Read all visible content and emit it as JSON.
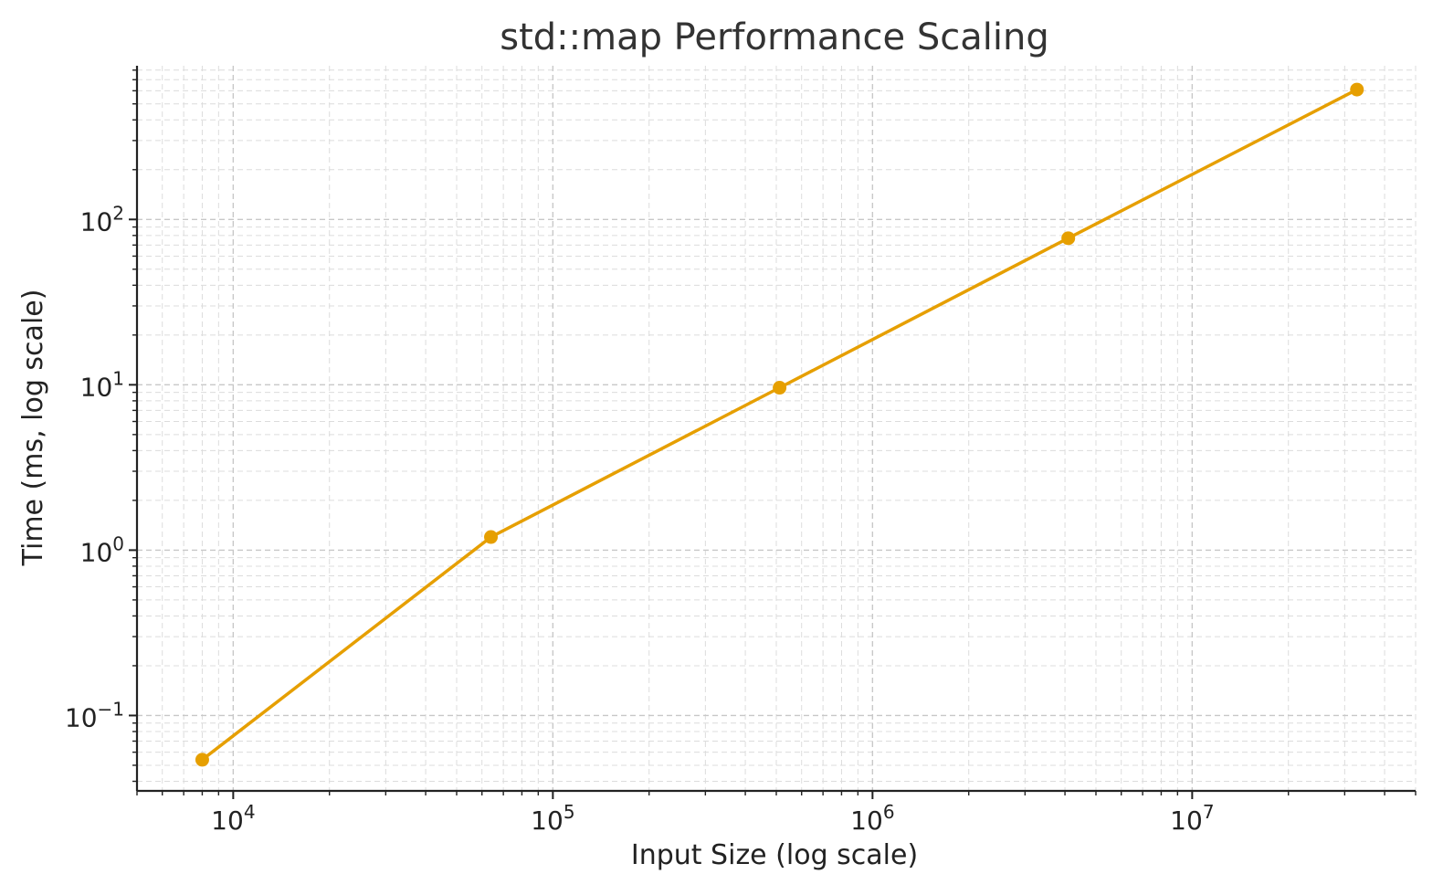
{
  "chart_data": {
    "type": "line",
    "title": "std::map Performance Scaling",
    "xlabel": "Input Size (log scale)",
    "ylabel": "Time (ms, log scale)",
    "xscale": "log",
    "yscale": "log",
    "xlim": [
      5000,
      50000000
    ],
    "ylim": [
      0.035,
      850
    ],
    "grid": true,
    "grid_style": "dashed, major and minor",
    "x_ticks": [
      {
        "value": 10000,
        "base": "10",
        "exp": "4"
      },
      {
        "value": 100000,
        "base": "10",
        "exp": "5"
      },
      {
        "value": 1000000,
        "base": "10",
        "exp": "6"
      },
      {
        "value": 10000000,
        "base": "10",
        "exp": "7"
      }
    ],
    "y_ticks": [
      {
        "value": 0.1,
        "base": "10",
        "exp": "−1"
      },
      {
        "value": 1,
        "base": "10",
        "exp": "0"
      },
      {
        "value": 10,
        "base": "10",
        "exp": "1"
      },
      {
        "value": 100,
        "base": "10",
        "exp": "2"
      }
    ],
    "series": [
      {
        "color": "#E69F00",
        "marker": "circle",
        "x": [
          8000,
          64000,
          512000,
          4096000,
          32768000
        ],
        "y": [
          0.054,
          1.2,
          9.6,
          77,
          610
        ]
      }
    ]
  }
}
